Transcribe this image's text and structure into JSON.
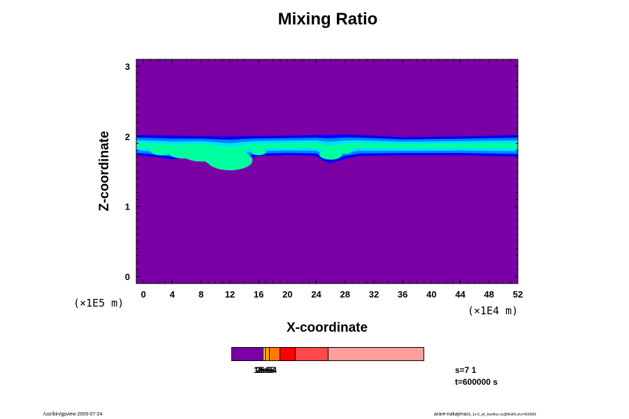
{
  "chart_data": {
    "type": "heatmap",
    "title": "Mixing Ratio",
    "xlabel": "X-coordinate",
    "ylabel": "Z-coordinate",
    "x_scale_note": "(×1E4 m)",
    "y_scale_note": "(×1E5 m)",
    "xlim": [
      -1,
      52
    ],
    "ylim": [
      -0.1,
      3.1
    ],
    "xticks": [
      0,
      4,
      8,
      12,
      16,
      20,
      24,
      28,
      32,
      36,
      40,
      44,
      48,
      52
    ],
    "yticks": [
      0,
      1,
      2,
      3
    ],
    "background_color": "#7a00a6",
    "layer": {
      "z_base_profile": [
        [
          -1,
          1.73
        ],
        [
          2,
          1.7
        ],
        [
          4,
          1.67
        ],
        [
          6,
          1.7
        ],
        [
          8,
          1.72
        ],
        [
          10,
          1.67
        ],
        [
          12,
          1.6
        ],
        [
          14,
          1.68
        ],
        [
          16,
          1.72
        ],
        [
          20,
          1.73
        ],
        [
          24,
          1.72
        ],
        [
          25,
          1.65
        ],
        [
          26,
          1.62
        ],
        [
          28,
          1.68
        ],
        [
          30,
          1.72
        ],
        [
          36,
          1.73
        ],
        [
          44,
          1.73
        ],
        [
          48,
          1.72
        ],
        [
          52,
          1.71
        ]
      ],
      "z_top_profile": [
        [
          -1,
          2.02
        ],
        [
          10,
          2.0
        ],
        [
          20,
          2.01
        ],
        [
          28,
          2.03
        ],
        [
          36,
          1.99
        ],
        [
          44,
          2.0
        ],
        [
          52,
          2.02
        ]
      ],
      "color_bands": [
        "#0000ff",
        "#0084ff",
        "#00dfff",
        "#00ff9e",
        "#49ff00",
        "#c8ff00",
        "#ffe600",
        "#ff9c00",
        "#ff0000"
      ],
      "hotspots": [
        {
          "x": 2.5,
          "z": 1.8,
          "level": 6
        },
        {
          "x": 5.5,
          "z": 1.78,
          "level": 7
        },
        {
          "x": 8.0,
          "z": 1.76,
          "level": 8
        },
        {
          "x": 10.0,
          "z": 1.74,
          "level": 8
        },
        {
          "x": 11.5,
          "z": 1.7,
          "level": 9
        },
        {
          "x": 12.0,
          "z": 1.66,
          "level": 9
        },
        {
          "x": 16.0,
          "z": 1.78,
          "level": 5
        },
        {
          "x": 20.0,
          "z": 1.84,
          "level": 4
        },
        {
          "x": 26.0,
          "z": 1.74,
          "level": 6
        },
        {
          "x": 28.0,
          "z": 1.8,
          "level": 5
        },
        {
          "x": 41.0,
          "z": 1.86,
          "level": 3
        },
        {
          "x": 48.0,
          "z": 1.87,
          "level": 4
        }
      ]
    },
    "colorbar": {
      "segments": [
        {
          "color": "#7a00a6",
          "width": 44
        },
        {
          "color": "#ffe000",
          "width": 2
        },
        {
          "color": "#ff9c00",
          "width": 5
        },
        {
          "color": "#ff7a00",
          "width": 14
        },
        {
          "color": "#ff0000",
          "width": 22
        },
        {
          "color": "#ff4848",
          "width": 46
        },
        {
          "color": "#ff9c9c",
          "width": 137
        }
      ],
      "labels": [
        "1e-5",
        "2e-5",
        "3e-5",
        "5e-4"
      ]
    }
  },
  "info": {
    "s_label": "s=7 1",
    "t_label": "t=600000 s"
  },
  "footer": {
    "left": "/usr/bin/gpview 2005-07-24",
    "right": "arare-nakajima",
    "right_small": "03_1e-6_sit_hweflux.nc@MixRt,x/t,t=600000"
  }
}
